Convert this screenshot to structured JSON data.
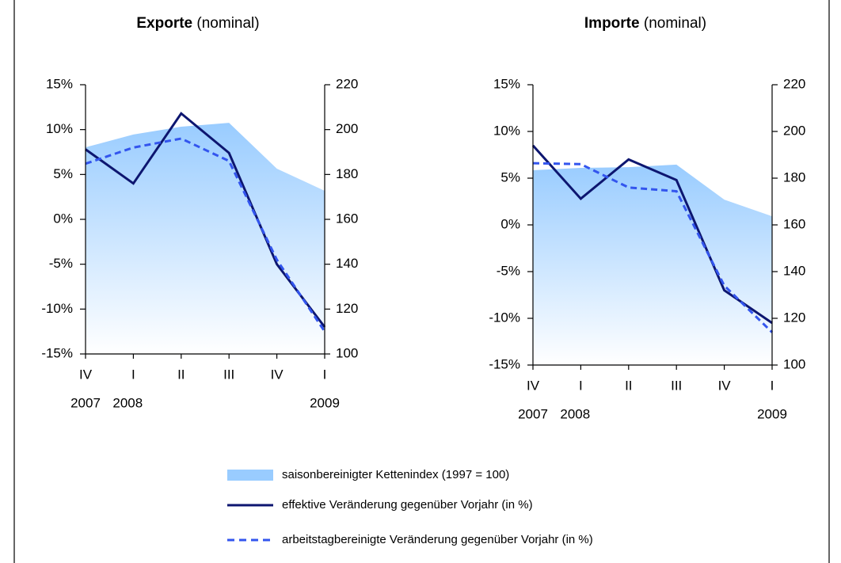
{
  "chart_data": [
    {
      "type": "line",
      "title": "Exporte",
      "title_note": "(nominal)",
      "categories": [
        "IV",
        "I",
        "II",
        "III",
        "IV",
        "I"
      ],
      "years": [
        "2007",
        "2008",
        null,
        null,
        null,
        "2009"
      ],
      "ylim": [
        -15,
        15
      ],
      "yticks": [
        {
          "value": -15,
          "label": "-15%"
        },
        {
          "value": -10,
          "label": "-10%"
        },
        {
          "value": -5,
          "label": "-5%"
        },
        {
          "value": 0,
          "label": "0%"
        },
        {
          "value": 5,
          "label": "5%"
        },
        {
          "value": 10,
          "label": "10%"
        },
        {
          "value": 15,
          "label": "15%"
        }
      ],
      "y2lim": [
        100,
        220
      ],
      "y2ticks": [
        100,
        120,
        140,
        160,
        180,
        200,
        220
      ],
      "series": [
        {
          "name": "saisonbereinigter Kettenindex (1997 = 100)",
          "color": "#99ccff",
          "axis": "y2",
          "kind": "area",
          "values": [
            192.1,
            197.8,
            201.3,
            203.0,
            182.6,
            172.7
          ]
        },
        {
          "name": "effektive Veränderung gegenüber Vorjahr (in %)",
          "color": "#0d1670",
          "kind": "solid",
          "values": [
            7.8,
            4.0,
            11.8,
            7.4,
            -5.0,
            -12.0
          ]
        },
        {
          "name": "arbeitstagbereinigte Veränderung gegenüber Vorjahr (in %)",
          "color": "#3355ee",
          "kind": "dashed",
          "values": [
            6.2,
            8.0,
            9.0,
            6.5,
            -4.5,
            -12.5
          ]
        }
      ]
    },
    {
      "type": "line",
      "title": "Importe",
      "title_note": "(nominal)",
      "categories": [
        "IV",
        "I",
        "II",
        "III",
        "IV",
        "I"
      ],
      "years": [
        "2007",
        "2008",
        null,
        null,
        null,
        "2009"
      ],
      "ylim": [
        -15,
        15
      ],
      "yticks": [
        {
          "value": -15,
          "label": "-15%"
        },
        {
          "value": -10,
          "label": "-10%"
        },
        {
          "value": -5,
          "label": "-5%"
        },
        {
          "value": 0,
          "label": "0%"
        },
        {
          "value": 5,
          "label": "5%"
        },
        {
          "value": 10,
          "label": "10%"
        },
        {
          "value": 15,
          "label": "15%"
        }
      ],
      "y2lim": [
        100,
        220
      ],
      "y2ticks": [
        100,
        120,
        140,
        160,
        180,
        200,
        220
      ],
      "series": [
        {
          "color": "#99ccff",
          "axis": "y2",
          "kind": "area",
          "values": [
            183.4,
            184.4,
            184.7,
            185.8,
            170.8,
            163.7
          ]
        },
        {
          "color": "#0d1670",
          "kind": "solid",
          "values": [
            8.5,
            2.8,
            7.0,
            4.8,
            -7.0,
            -10.5
          ]
        },
        {
          "color": "#3355ee",
          "kind": "dashed",
          "values": [
            6.6,
            6.5,
            4.0,
            3.6,
            -6.5,
            -11.5
          ]
        }
      ]
    }
  ]
}
